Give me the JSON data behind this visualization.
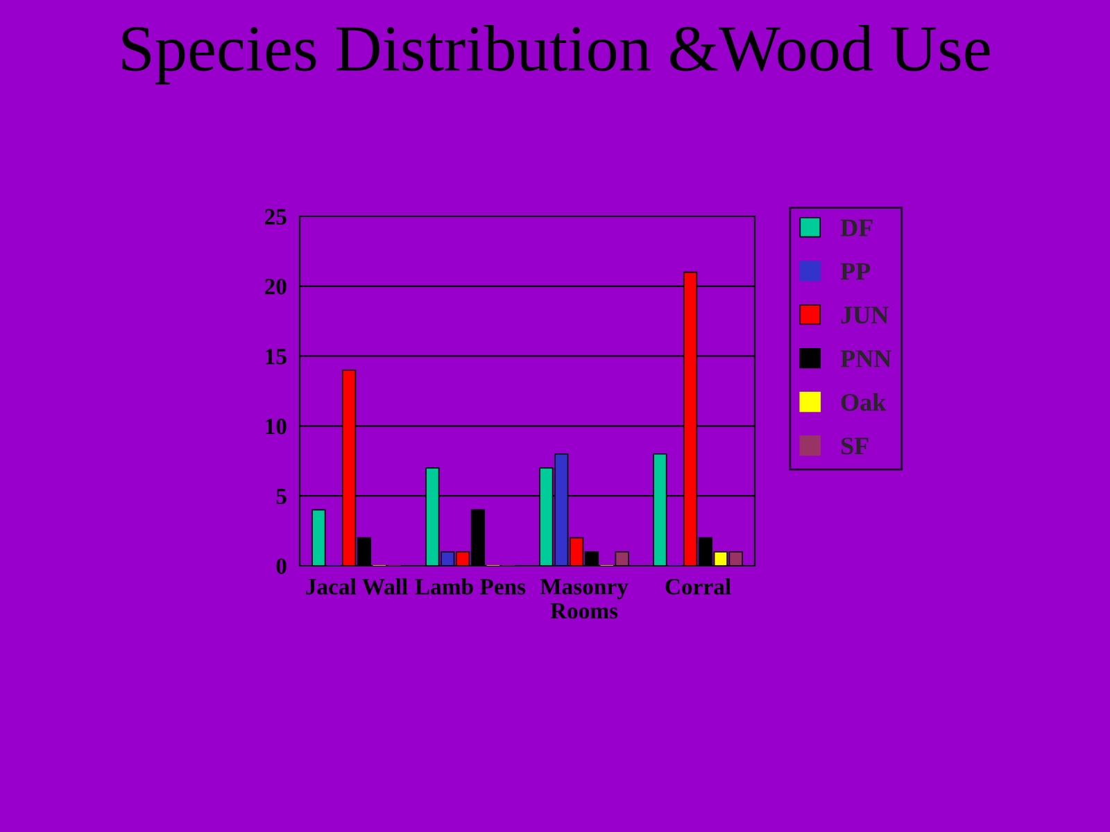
{
  "chart_data": {
    "type": "bar",
    "title": "Species Distribution &Wood Use",
    "categories": [
      "Jacal Wall",
      "Lamb Pens",
      "Masonry\nRooms",
      "Corral"
    ],
    "series": [
      {
        "name": "DF",
        "color": "#00cc99",
        "values": [
          4,
          7,
          7,
          8
        ]
      },
      {
        "name": "PP",
        "color": "#3333cc",
        "values": [
          0,
          1,
          8,
          0
        ]
      },
      {
        "name": "JUN",
        "color": "#ff0000",
        "values": [
          14,
          1,
          2,
          21
        ]
      },
      {
        "name": "PNN",
        "color": "#000000",
        "values": [
          2,
          4,
          1,
          2
        ]
      },
      {
        "name": "Oak",
        "color": "#ffff00",
        "values": [
          0,
          0,
          0,
          1
        ]
      },
      {
        "name": "SF",
        "color": "#993366",
        "values": [
          0,
          0,
          1,
          1
        ]
      }
    ],
    "ylim": [
      0,
      25
    ],
    "yticks": [
      0,
      5,
      10,
      15,
      20,
      25
    ],
    "grid": "y",
    "legend": "right"
  }
}
